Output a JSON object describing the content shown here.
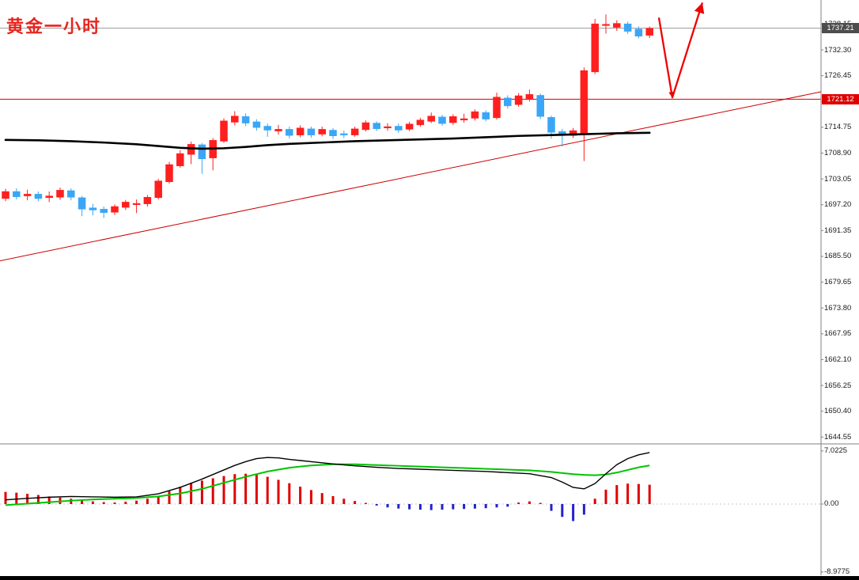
{
  "header": {
    "title": "黄金一小时",
    "title_color": "#e8251f"
  },
  "colors": {
    "bull": "#ff1f1f",
    "bear": "#3aa6f5",
    "ma_black": "#000000",
    "signal_green": "#00c400",
    "trend_red": "#cc0000",
    "hline_red": "#d40000",
    "arrow_red": "#f00000",
    "hist_pos": "#e00000",
    "hist_neg": "#2222cc",
    "current_line": "#9a9a9a",
    "current_badge_bg": "#4d4d4d",
    "hline_badge_bg": "#e00000",
    "axis_line": "#808080",
    "zero_line": "#c8c8c8",
    "bottom_bar": "#000000"
  },
  "main": {
    "current_price_label": "1737.21",
    "hline_label": "1721.12",
    "axis_ticks": [
      "1738.15",
      "1732.30",
      "1726.45",
      "1720.60",
      "1714.75",
      "1708.90",
      "1703.05",
      "1697.20",
      "1691.35",
      "1685.50",
      "1679.65",
      "1673.80",
      "1667.95",
      "1662.10",
      "1656.25",
      "1650.40",
      "1644.55"
    ]
  },
  "indicator": {
    "max_label": "7.0225",
    "zero_label": "0.00",
    "min_label": "-8.9775"
  },
  "chart_data": {
    "type": "candlestick",
    "title": "黄金一小时",
    "main_panel": {
      "ylim": [
        1643.0,
        1743.6
      ],
      "current_price": 1737.21,
      "hline_price": 1721.12,
      "candles": [
        [
          1698.6,
          1700.8,
          1698.0,
          1700.2
        ],
        [
          1700.2,
          1700.9,
          1698.4,
          1699.0
        ],
        [
          1699.2,
          1700.6,
          1698.2,
          1699.6
        ],
        [
          1699.6,
          1700.2,
          1698.0,
          1698.6
        ],
        [
          1698.8,
          1700.2,
          1697.8,
          1699.2
        ],
        [
          1698.9,
          1701.1,
          1698.3,
          1700.5
        ],
        [
          1700.4,
          1700.9,
          1698.2,
          1698.9
        ],
        [
          1698.8,
          1699.2,
          1694.6,
          1696.2
        ],
        [
          1696.5,
          1697.4,
          1694.8,
          1696.0
        ],
        [
          1696.2,
          1696.8,
          1694.2,
          1695.4
        ],
        [
          1695.5,
          1697.3,
          1694.9,
          1696.8
        ],
        [
          1696.6,
          1698.3,
          1696.0,
          1697.8
        ],
        [
          1697.2,
          1698.4,
          1695.3,
          1697.5
        ],
        [
          1697.4,
          1699.4,
          1696.8,
          1698.9
        ],
        [
          1698.8,
          1703.1,
          1698.4,
          1702.6
        ],
        [
          1702.4,
          1706.9,
          1702.0,
          1706.3
        ],
        [
          1706.0,
          1709.6,
          1705.6,
          1708.8
        ],
        [
          1708.6,
          1711.5,
          1706.4,
          1710.9
        ],
        [
          1710.8,
          1711.2,
          1704.2,
          1707.6
        ],
        [
          1707.8,
          1712.3,
          1705.0,
          1711.8
        ],
        [
          1711.6,
          1716.8,
          1711.2,
          1716.2
        ],
        [
          1715.9,
          1718.4,
          1715.2,
          1717.3
        ],
        [
          1717.2,
          1717.9,
          1715.0,
          1715.7
        ],
        [
          1716.0,
          1716.6,
          1714.0,
          1714.7
        ],
        [
          1715.0,
          1715.6,
          1712.6,
          1714.1
        ],
        [
          1713.9,
          1715.3,
          1713.1,
          1714.3
        ],
        [
          1714.3,
          1714.9,
          1712.2,
          1712.9
        ],
        [
          1713.0,
          1715.2,
          1712.5,
          1714.6
        ],
        [
          1714.4,
          1714.9,
          1712.4,
          1713.0
        ],
        [
          1713.2,
          1714.9,
          1712.7,
          1714.3
        ],
        [
          1714.1,
          1714.6,
          1712.1,
          1712.8
        ],
        [
          1713.3,
          1714.0,
          1712.3,
          1713.0
        ],
        [
          1713.0,
          1714.9,
          1712.6,
          1714.4
        ],
        [
          1714.2,
          1716.3,
          1713.8,
          1715.8
        ],
        [
          1715.7,
          1716.1,
          1713.9,
          1714.4
        ],
        [
          1714.6,
          1715.7,
          1714.0,
          1714.9
        ],
        [
          1715.0,
          1715.6,
          1713.5,
          1714.1
        ],
        [
          1714.3,
          1716.0,
          1713.9,
          1715.5
        ],
        [
          1715.3,
          1716.9,
          1714.9,
          1716.4
        ],
        [
          1716.1,
          1718.1,
          1715.7,
          1717.3
        ],
        [
          1717.1,
          1717.6,
          1715.1,
          1715.6
        ],
        [
          1715.8,
          1717.7,
          1715.3,
          1717.2
        ],
        [
          1716.4,
          1717.8,
          1715.8,
          1716.7
        ],
        [
          1716.8,
          1718.8,
          1716.3,
          1718.3
        ],
        [
          1718.1,
          1718.6,
          1716.1,
          1716.6
        ],
        [
          1716.9,
          1722.6,
          1716.5,
          1721.6
        ],
        [
          1721.4,
          1722.0,
          1719.0,
          1719.6
        ],
        [
          1719.9,
          1722.5,
          1719.4,
          1721.9
        ],
        [
          1721.2,
          1723.3,
          1720.6,
          1722.2
        ],
        [
          1722.0,
          1722.4,
          1716.6,
          1717.2
        ],
        [
          1717.0,
          1717.4,
          1712.2,
          1713.6
        ],
        [
          1713.8,
          1714.4,
          1710.4,
          1712.9
        ],
        [
          1712.9,
          1714.6,
          1712.3,
          1714.0
        ],
        [
          1713.4,
          1728.3,
          1707.1,
          1727.6
        ],
        [
          1727.3,
          1739.3,
          1726.8,
          1738.2
        ],
        [
          1737.8,
          1740.3,
          1736.0,
          1738.1
        ],
        [
          1737.4,
          1739.0,
          1736.6,
          1738.3
        ],
        [
          1738.2,
          1738.7,
          1735.9,
          1736.5
        ],
        [
          1737.0,
          1737.6,
          1734.9,
          1735.4
        ],
        [
          1735.6,
          1737.6,
          1735.0,
          1737.2
        ]
      ],
      "ma_black": [
        [
          0,
          1711.9
        ],
        [
          3,
          1711.8
        ],
        [
          6,
          1711.6
        ],
        [
          9,
          1711.3
        ],
        [
          12,
          1710.9
        ],
        [
          14,
          1710.5
        ],
        [
          16,
          1710.1
        ],
        [
          18,
          1709.9
        ],
        [
          20,
          1710.0
        ],
        [
          22,
          1710.3
        ],
        [
          24,
          1710.7
        ],
        [
          26,
          1711.0
        ],
        [
          29,
          1711.3
        ],
        [
          32,
          1711.6
        ],
        [
          35,
          1711.8
        ],
        [
          38,
          1712.0
        ],
        [
          41,
          1712.2
        ],
        [
          44,
          1712.5
        ],
        [
          47,
          1712.8
        ],
        [
          50,
          1713.0
        ],
        [
          53,
          1713.2
        ],
        [
          56,
          1713.4
        ],
        [
          59,
          1713.5
        ]
      ],
      "trendline": {
        "x_frac": [
          0,
          1
        ],
        "price": [
          1684.5,
          1722.8
        ]
      },
      "arrow_annotation": [
        [
          833,
          1739.6
        ],
        [
          850,
          1721.5
        ],
        [
          888,
          1743.0
        ]
      ]
    },
    "indicator_panel": {
      "type": "macd",
      "ylim": [
        -9.41,
        7.84
      ],
      "ticks": [
        7.0225,
        0.0,
        -8.9775
      ],
      "histogram": [
        1.6,
        1.5,
        1.35,
        1.2,
        1.0,
        0.85,
        0.7,
        0.5,
        0.35,
        0.25,
        0.2,
        0.3,
        0.45,
        0.7,
        1.1,
        1.7,
        2.3,
        2.8,
        3.1,
        3.4,
        3.7,
        3.95,
        4.0,
        3.85,
        3.6,
        3.2,
        2.75,
        2.3,
        1.85,
        1.45,
        1.05,
        0.7,
        0.4,
        0.15,
        -0.2,
        -0.45,
        -0.6,
        -0.7,
        -0.75,
        -0.8,
        -0.75,
        -0.7,
        -0.65,
        -0.6,
        -0.55,
        -0.45,
        -0.35,
        0.2,
        0.35,
        0.15,
        -0.9,
        -1.7,
        -2.25,
        -1.4,
        0.7,
        1.9,
        2.5,
        2.7,
        2.65,
        2.55
      ],
      "macd_line": [
        [
          0,
          0.55
        ],
        [
          2,
          0.75
        ],
        [
          4,
          0.9
        ],
        [
          6,
          1.0
        ],
        [
          8,
          0.95
        ],
        [
          10,
          0.9
        ],
        [
          12,
          0.95
        ],
        [
          14,
          1.35
        ],
        [
          16,
          2.2
        ],
        [
          18,
          3.3
        ],
        [
          20,
          4.5
        ],
        [
          21,
          5.1
        ],
        [
          22,
          5.6
        ],
        [
          23,
          6.0
        ],
        [
          24,
          6.15
        ],
        [
          25,
          6.1
        ],
        [
          26,
          5.9
        ],
        [
          28,
          5.6
        ],
        [
          30,
          5.3
        ],
        [
          32,
          5.05
        ],
        [
          34,
          4.85
        ],
        [
          36,
          4.7
        ],
        [
          38,
          4.6
        ],
        [
          40,
          4.5
        ],
        [
          42,
          4.4
        ],
        [
          44,
          4.3
        ],
        [
          46,
          4.15
        ],
        [
          48,
          4.0
        ],
        [
          50,
          3.5
        ],
        [
          51,
          2.9
        ],
        [
          52,
          2.2
        ],
        [
          53,
          2.0
        ],
        [
          54,
          2.7
        ],
        [
          55,
          4.0
        ],
        [
          56,
          5.2
        ],
        [
          57,
          6.0
        ],
        [
          58,
          6.5
        ],
        [
          59,
          6.8
        ]
      ],
      "signal_line": [
        [
          0,
          -0.15
        ],
        [
          2,
          0.05
        ],
        [
          4,
          0.25
        ],
        [
          6,
          0.45
        ],
        [
          8,
          0.6
        ],
        [
          10,
          0.7
        ],
        [
          12,
          0.8
        ],
        [
          14,
          1.0
        ],
        [
          16,
          1.4
        ],
        [
          18,
          2.0
        ],
        [
          20,
          2.8
        ],
        [
          22,
          3.6
        ],
        [
          24,
          4.3
        ],
        [
          26,
          4.8
        ],
        [
          28,
          5.1
        ],
        [
          30,
          5.25
        ],
        [
          32,
          5.25
        ],
        [
          34,
          5.15
        ],
        [
          36,
          5.05
        ],
        [
          38,
          4.95
        ],
        [
          40,
          4.85
        ],
        [
          42,
          4.75
        ],
        [
          44,
          4.65
        ],
        [
          46,
          4.55
        ],
        [
          48,
          4.45
        ],
        [
          50,
          4.25
        ],
        [
          52,
          3.95
        ],
        [
          53,
          3.85
        ],
        [
          54,
          3.8
        ],
        [
          55,
          3.9
        ],
        [
          56,
          4.15
        ],
        [
          57,
          4.5
        ],
        [
          58,
          4.85
        ],
        [
          59,
          5.1
        ]
      ]
    }
  }
}
